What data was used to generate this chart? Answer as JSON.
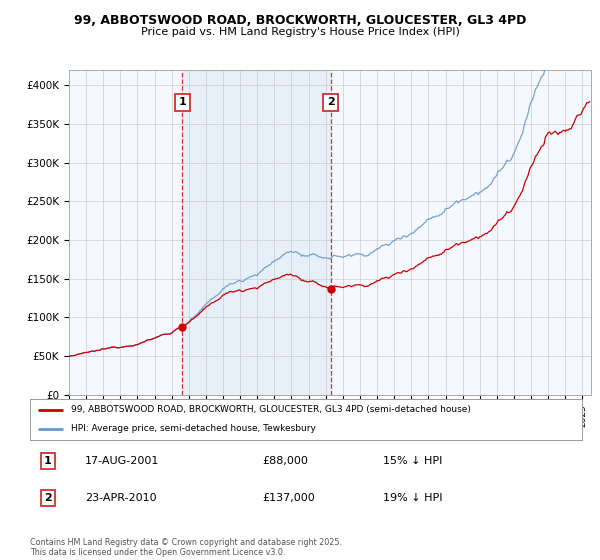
{
  "title": "99, ABBOTSWOOD ROAD, BROCKWORTH, GLOUCESTER, GL3 4PD",
  "subtitle": "Price paid vs. HM Land Registry's House Price Index (HPI)",
  "sale1_date": 2001.62,
  "sale1_price": 88000,
  "sale1_label": "1",
  "sale1_text": "17-AUG-2001",
  "sale1_price_text": "£88,000",
  "sale1_hpi_text": "15% ↓ HPI",
  "sale2_date": 2010.29,
  "sale2_price": 137000,
  "sale2_label": "2",
  "sale2_text": "23-APR-2010",
  "sale2_price_text": "£137,000",
  "sale2_hpi_text": "19% ↓ HPI",
  "legend_label1": "99, ABBOTSWOOD ROAD, BROCKWORTH, GLOUCESTER, GL3 4PD (semi-detached house)",
  "legend_label2": "HPI: Average price, semi-detached house, Tewkesbury",
  "footer": "Contains HM Land Registry data © Crown copyright and database right 2025.\nThis data is licensed under the Open Government Licence v3.0.",
  "line_color_property": "#cc0000",
  "line_color_hpi": "#6699cc",
  "bg_color": "#dce8f5",
  "plot_bg": "#f5f8ff",
  "vline_color": "#cc3333",
  "xlim_start": 1995.0,
  "xlim_end": 2025.5,
  "ylim_min": 0,
  "ylim_max": 420000,
  "yticks": [
    0,
    50000,
    100000,
    150000,
    200000,
    250000,
    300000,
    350000,
    400000
  ],
  "ytick_labels": [
    "£0",
    "£50K",
    "£100K",
    "£150K",
    "£200K",
    "£250K",
    "£300K",
    "£350K",
    "£400K"
  ]
}
